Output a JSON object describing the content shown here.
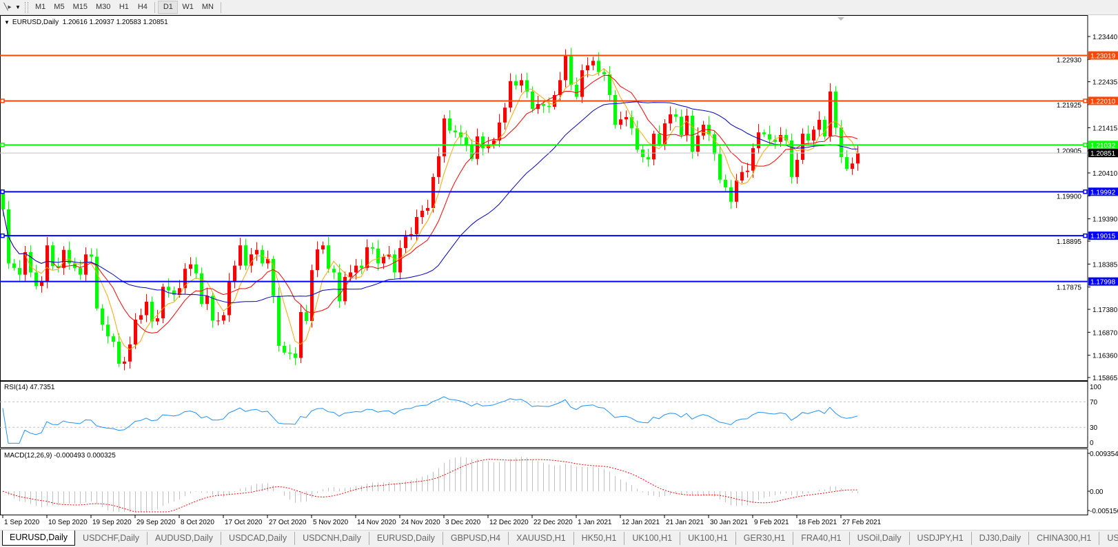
{
  "toolbar": {
    "tool_icon": "line-tool-icon",
    "timeframes": [
      "M1",
      "M5",
      "M15",
      "M30",
      "H1",
      "H4",
      "D1",
      "W1",
      "MN"
    ],
    "active_timeframe": "D1"
  },
  "chart": {
    "title": "EURUSD,Daily",
    "ohlc_text": "1.20616 1.20937 1.20583 1.20851",
    "current_price": "1.20851",
    "current_price_value": 1.20851,
    "bull_color": "#ff0000",
    "bear_color": "#00ff00",
    "ma_colors": [
      "#ffa500",
      "#ff0000",
      "#0000c8"
    ]
  },
  "levels": [
    {
      "label": "1.23019",
      "value": 1.23019,
      "color": "#ff4500",
      "marked": false
    },
    {
      "label": "1.22010",
      "value": 1.2201,
      "color": "#ff4500",
      "marked": true
    },
    {
      "label": "1.21032",
      "value": 1.21032,
      "color": "#00ff00",
      "marked": true
    },
    {
      "label": "1.19992",
      "value": 1.19992,
      "color": "#0000ff",
      "marked": true
    },
    {
      "label": "1.19015",
      "value": 1.19015,
      "color": "#0000ff",
      "marked": true
    },
    {
      "label": "1.17998",
      "value": 1.17998,
      "color": "#0000ff",
      "marked": false
    }
  ],
  "rsi": {
    "label": "RSI(14) 47.7351",
    "ticks": [
      "100",
      "70",
      "30",
      "0"
    ],
    "color": "#1e90ff"
  },
  "macd": {
    "label": "MACD(12,26,9) -0.000493 0.000325",
    "ticks": [
      "0.009354",
      "0.00",
      "-0.005156"
    ]
  },
  "chart_data": {
    "type": "candlestick",
    "symbol": "EURUSD",
    "timeframe": "Daily",
    "y_ticks": [
      "1.23440",
      "1.22930",
      "1.22435",
      "1.21925",
      "1.21415",
      "1.20905",
      "1.20410",
      "1.19900",
      "1.19390",
      "1.18895",
      "1.18385",
      "1.17875",
      "1.17380",
      "1.16870",
      "1.16360",
      "1.15865"
    ],
    "ylim": [
      1.15865,
      1.2344
    ],
    "x_labels": [
      "1 Sep 2020",
      "10 Sep 2020",
      "19 Sep 2020",
      "29 Sep 2020",
      "8 Oct 2020",
      "17 Oct 2020",
      "27 Oct 2020",
      "5 Nov 2020",
      "14 Nov 2020",
      "24 Nov 2020",
      "3 Dec 2020",
      "12 Dec 2020",
      "22 Dec 2020",
      "1 Jan 2021",
      "12 Jan 2021",
      "21 Jan 2021",
      "30 Jan 2021",
      "9 Feb 2021",
      "18 Feb 2021",
      "27 Feb 2021"
    ],
    "close": [
      1.196,
      1.184,
      1.183,
      1.1815,
      1.1865,
      1.182,
      1.179,
      1.18,
      1.188,
      1.1834,
      1.183,
      1.187,
      1.184,
      1.183,
      1.1815,
      1.186,
      1.1855,
      1.174,
      1.1704,
      1.1678,
      1.1666,
      1.1617,
      1.1622,
      1.166,
      1.1715,
      1.1725,
      1.1755,
      1.1711,
      1.1718,
      1.1788,
      1.178,
      1.177,
      1.1785,
      1.1828,
      1.1838,
      1.1818,
      1.175,
      1.1768,
      1.1713,
      1.1713,
      1.1725,
      1.18,
      1.1835,
      1.188,
      1.1835,
      1.186,
      1.187,
      1.184,
      1.185,
      1.1768,
      1.1657,
      1.1642,
      1.164,
      1.163,
      1.1732,
      1.1712,
      1.1825,
      1.1871,
      1.188,
      1.1828,
      1.182,
      1.1756,
      1.181,
      1.182,
      1.1835,
      1.183,
      1.1876,
      1.1873,
      1.184,
      1.1855,
      1.186,
      1.182,
      1.1874,
      1.19,
      1.1905,
      1.1943,
      1.1957,
      1.1963,
      1.2032,
      1.2078,
      1.2162,
      1.2135,
      1.2131,
      1.212,
      1.2102,
      1.2072,
      1.2122,
      1.2096,
      1.2102,
      1.2113,
      1.2153,
      1.2186,
      1.2245,
      1.2235,
      1.2247,
      1.2222,
      1.2183,
      1.2194,
      1.219,
      1.2188,
      1.2214,
      1.2247,
      1.2303,
      1.2237,
      1.221,
      1.2269,
      1.228,
      1.229,
      1.2265,
      1.226,
      1.2214,
      1.2148,
      1.216,
      1.2165,
      1.214,
      1.2093,
      1.2076,
      1.2071,
      1.2128,
      1.2105,
      1.2151,
      1.2171,
      1.2166,
      1.2125,
      1.2168,
      1.2088,
      1.2124,
      1.2148,
      1.2127,
      1.2083,
      1.2026,
      1.2009,
      1.1977,
      1.2024,
      1.2043,
      1.2046,
      1.2096,
      1.2131,
      1.2127,
      1.2115,
      1.211,
      1.2125,
      1.2113,
      1.2032,
      1.207,
      1.2128,
      1.2113,
      1.2137,
      1.2159,
      1.2122,
      1.2222,
      1.2142,
      1.2076,
      1.205,
      1.2062,
      1.20851
    ],
    "indicators": [
      "MA fast (orange)",
      "MA medium (red)",
      "MA slow (blue)",
      "RSI(14)",
      "MACD(12,26,9)"
    ],
    "grid": false
  },
  "tabs": [
    "EURUSD,Daily",
    "USDCHF,Daily",
    "AUDUSD,Daily",
    "USDCAD,Daily",
    "USDCNH,Daily",
    "EURUSD,Daily",
    "GBPUSD,H4",
    "XAUUSD,H1",
    "HK50,H1",
    "UK100,H1",
    "UK100,H1",
    "GER30,H1",
    "FRA40,H1",
    "USOil,Daily",
    "USDJPY,H1",
    "DJ30,Daily",
    "CHINA300,H1",
    "USOil,"
  ],
  "active_tab": 0
}
